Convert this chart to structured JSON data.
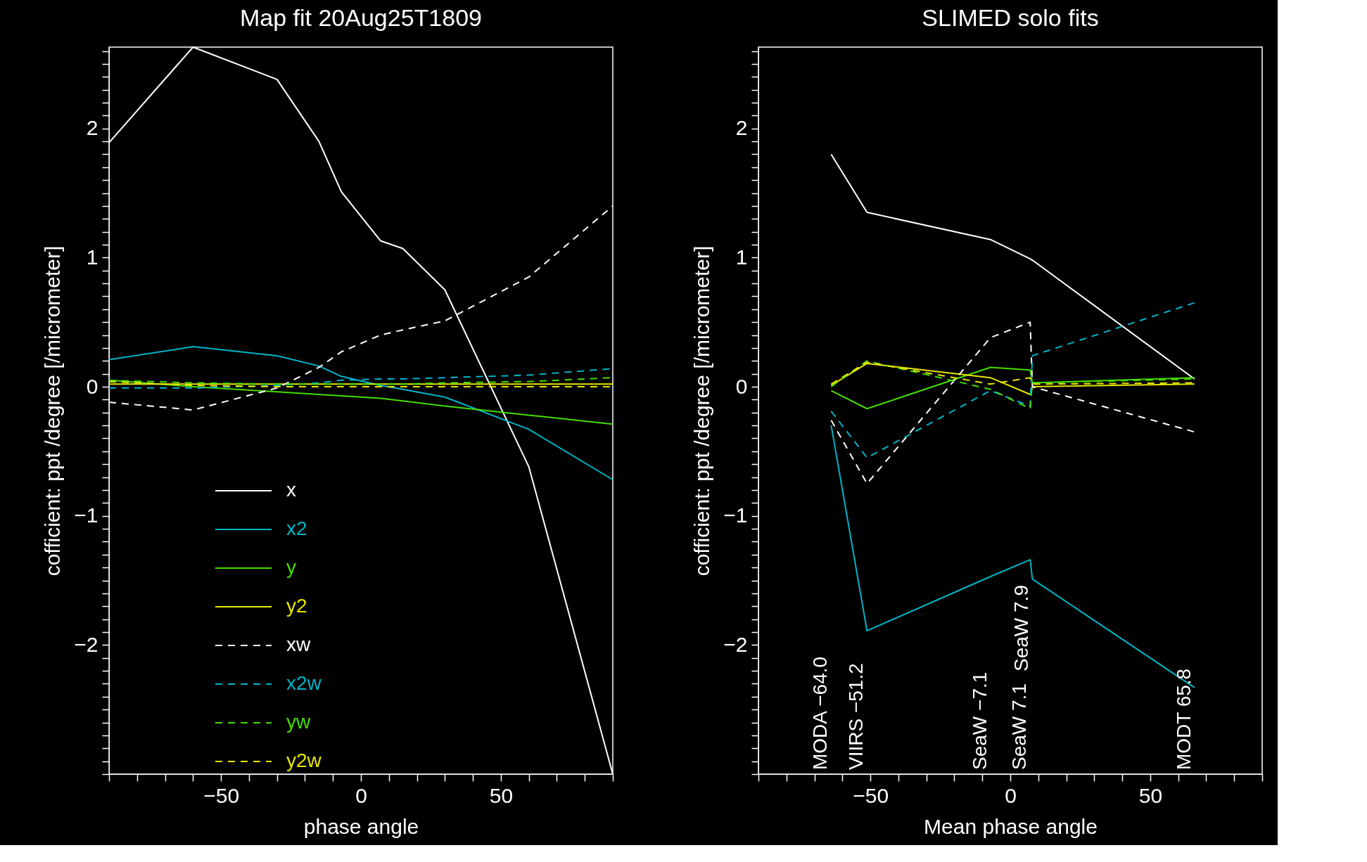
{
  "chart_data": [
    {
      "type": "line",
      "title": "Map fit 20Aug25T1809",
      "xlabel": "phase angle",
      "ylabel": "cofficient: ppt /degree [/micrometer]",
      "x": [
        -90,
        -60,
        -30,
        -15,
        -7,
        7,
        15,
        30,
        60,
        90
      ],
      "xlim": [
        -90,
        90
      ],
      "ylim": [
        -3.0,
        2.63
      ],
      "xticks": [
        {
          "value": -90,
          "label": null
        },
        {
          "value": -80,
          "label": null
        },
        {
          "value": -70,
          "label": null
        },
        {
          "value": -60,
          "label": null
        },
        -50,
        {
          "value": -40,
          "label": null
        },
        {
          "value": -30,
          "label": null
        },
        {
          "value": -20,
          "label": null
        },
        {
          "value": -10,
          "label": null
        },
        0,
        {
          "value": 10,
          "label": null
        },
        {
          "value": 20,
          "label": null
        },
        {
          "value": 30,
          "label": null
        },
        {
          "value": 40,
          "label": null
        },
        50,
        {
          "value": 60,
          "label": null
        },
        {
          "value": 70,
          "label": null
        },
        {
          "value": 80,
          "label": null
        },
        {
          "value": 90,
          "label": null
        }
      ],
      "yticks": [
        {
          "value": -3.0,
          "label": null
        },
        {
          "value": -2.9,
          "label": null
        },
        {
          "value": -2.8,
          "label": null
        },
        {
          "value": -2.7,
          "label": null
        },
        {
          "value": -2.6,
          "label": null
        },
        {
          "value": -2.5,
          "label": null
        },
        {
          "value": -2.4,
          "label": null
        },
        {
          "value": -2.3,
          "label": null
        },
        {
          "value": -2.2,
          "label": null
        },
        {
          "value": -2.1,
          "label": null
        },
        -2,
        {
          "value": -1.9,
          "label": null
        },
        {
          "value": -1.8,
          "label": null
        },
        {
          "value": -1.7,
          "label": null
        },
        {
          "value": -1.6,
          "label": null
        },
        {
          "value": -1.5,
          "label": null
        },
        {
          "value": -1.4,
          "label": null
        },
        {
          "value": -1.3,
          "label": null
        },
        {
          "value": -1.2,
          "label": null
        },
        {
          "value": -1.1,
          "label": null
        },
        -1,
        {
          "value": -0.9,
          "label": null
        },
        {
          "value": -0.8,
          "label": null
        },
        {
          "value": -0.7,
          "label": null
        },
        {
          "value": -0.6,
          "label": null
        },
        {
          "value": -0.5,
          "label": null
        },
        {
          "value": -0.4,
          "label": null
        },
        {
          "value": -0.3,
          "label": null
        },
        {
          "value": -0.2,
          "label": null
        },
        {
          "value": -0.1,
          "label": null
        },
        0,
        {
          "value": 0.1,
          "label": null
        },
        {
          "value": 0.2,
          "label": null
        },
        {
          "value": 0.3,
          "label": null
        },
        {
          "value": 0.4,
          "label": null
        },
        {
          "value": 0.5,
          "label": null
        },
        {
          "value": 0.6,
          "label": null
        },
        {
          "value": 0.7,
          "label": null
        },
        {
          "value": 0.8,
          "label": null
        },
        {
          "value": 0.9,
          "label": null
        },
        1,
        {
          "value": 1.1,
          "label": null
        },
        {
          "value": 1.2,
          "label": null
        },
        {
          "value": 1.3,
          "label": null
        },
        {
          "value": 1.4,
          "label": null
        },
        {
          "value": 1.5,
          "label": null
        },
        {
          "value": 1.6,
          "label": null
        },
        {
          "value": 1.7,
          "label": null
        },
        {
          "value": 1.8,
          "label": null
        },
        {
          "value": 1.9,
          "label": null
        },
        2,
        {
          "value": 2.1,
          "label": null
        },
        {
          "value": 2.2,
          "label": null
        },
        {
          "value": 2.3,
          "label": null
        },
        {
          "value": 2.4,
          "label": null
        },
        {
          "value": 2.5,
          "label": null
        },
        {
          "value": 2.6,
          "label": null
        }
      ],
      "grid": false,
      "legend": "bottom left",
      "series": [
        {
          "name": "x",
          "color": "#ffffff",
          "line_style": "solid",
          "values": [
            1.89,
            2.63,
            2.38,
            1.9,
            1.51,
            1.13,
            1.07,
            0.75,
            -0.62,
            -3.0
          ]
        },
        {
          "name": "x2",
          "color": "#00b4c8",
          "line_style": "solid",
          "values": [
            0.21,
            0.31,
            0.24,
            0.16,
            0.08,
            0.01,
            -0.02,
            -0.08,
            -0.33,
            -0.72
          ]
        },
        {
          "name": "y",
          "color": "#44dd00",
          "line_style": "solid",
          "values": [
            0.05,
            0.0,
            -0.04,
            -0.06,
            -0.07,
            -0.09,
            -0.11,
            -0.15,
            -0.22,
            -0.29
          ]
        },
        {
          "name": "y2",
          "color": "#e6e600",
          "line_style": "solid",
          "values": [
            0.02,
            0.02,
            0.02,
            0.02,
            0.02,
            0.02,
            0.02,
            0.02,
            0.02,
            0.02
          ]
        },
        {
          "name": "xw",
          "color": "#ffffff",
          "line_style": "dashed",
          "values": [
            -0.12,
            -0.18,
            -0.01,
            0.15,
            0.27,
            0.4,
            0.44,
            0.51,
            0.85,
            1.4
          ]
        },
        {
          "name": "x2w",
          "color": "#00b4c8",
          "line_style": "dashed",
          "values": [
            -0.01,
            -0.01,
            0.01,
            0.03,
            0.05,
            0.06,
            0.06,
            0.07,
            0.09,
            0.14
          ]
        },
        {
          "name": "yw",
          "color": "#44dd00",
          "line_style": "dashed",
          "values": [
            0.05,
            0.03,
            0.02,
            0.02,
            0.02,
            0.02,
            0.02,
            0.03,
            0.04,
            0.07
          ]
        },
        {
          "name": "y2w",
          "color": "#e6e600",
          "line_style": "dashed",
          "values": [
            0.04,
            0.01,
            0.0,
            0.0,
            0.0,
            0.0,
            0.0,
            0.0,
            0.0,
            0.0
          ]
        }
      ]
    },
    {
      "type": "line",
      "title": "SLIMED solo fits",
      "xlabel": "Mean phase angle",
      "ylabel": "cofficient: ppt /degree [/micrometer]",
      "x": [
        -64.0,
        -51.2,
        -7.1,
        7.1,
        7.9,
        65.8
      ],
      "xlim": [
        -90,
        90
      ],
      "ylim": [
        -3.0,
        2.63
      ],
      "xticks": [
        {
          "value": -90,
          "label": null
        },
        {
          "value": -80,
          "label": null
        },
        {
          "value": -70,
          "label": null
        },
        {
          "value": -60,
          "label": null
        },
        -50,
        {
          "value": -40,
          "label": null
        },
        {
          "value": -30,
          "label": null
        },
        {
          "value": -20,
          "label": null
        },
        {
          "value": -10,
          "label": null
        },
        0,
        {
          "value": 10,
          "label": null
        },
        {
          "value": 20,
          "label": null
        },
        {
          "value": 30,
          "label": null
        },
        {
          "value": 40,
          "label": null
        },
        50,
        {
          "value": 60,
          "label": null
        },
        {
          "value": 70,
          "label": null
        },
        {
          "value": 80,
          "label": null
        },
        {
          "value": 90,
          "label": null
        }
      ],
      "yticks": [
        {
          "value": -3.0,
          "label": null
        },
        {
          "value": -2.9,
          "label": null
        },
        {
          "value": -2.8,
          "label": null
        },
        {
          "value": -2.7,
          "label": null
        },
        {
          "value": -2.6,
          "label": null
        },
        {
          "value": -2.5,
          "label": null
        },
        {
          "value": -2.4,
          "label": null
        },
        {
          "value": -2.3,
          "label": null
        },
        {
          "value": -2.2,
          "label": null
        },
        {
          "value": -2.1,
          "label": null
        },
        -2,
        {
          "value": -1.9,
          "label": null
        },
        {
          "value": -1.8,
          "label": null
        },
        {
          "value": -1.7,
          "label": null
        },
        {
          "value": -1.6,
          "label": null
        },
        {
          "value": -1.5,
          "label": null
        },
        {
          "value": -1.4,
          "label": null
        },
        {
          "value": -1.3,
          "label": null
        },
        {
          "value": -1.2,
          "label": null
        },
        {
          "value": -1.1,
          "label": null
        },
        -1,
        {
          "value": -0.9,
          "label": null
        },
        {
          "value": -0.8,
          "label": null
        },
        {
          "value": -0.7,
          "label": null
        },
        {
          "value": -0.6,
          "label": null
        },
        {
          "value": -0.5,
          "label": null
        },
        {
          "value": -0.4,
          "label": null
        },
        {
          "value": -0.3,
          "label": null
        },
        {
          "value": -0.2,
          "label": null
        },
        {
          "value": -0.1,
          "label": null
        },
        0,
        {
          "value": 0.1,
          "label": null
        },
        {
          "value": 0.2,
          "label": null
        },
        {
          "value": 0.3,
          "label": null
        },
        {
          "value": 0.4,
          "label": null
        },
        {
          "value": 0.5,
          "label": null
        },
        {
          "value": 0.6,
          "label": null
        },
        {
          "value": 0.7,
          "label": null
        },
        {
          "value": 0.8,
          "label": null
        },
        {
          "value": 0.9,
          "label": null
        },
        1,
        {
          "value": 1.1,
          "label": null
        },
        {
          "value": 1.2,
          "label": null
        },
        {
          "value": 1.3,
          "label": null
        },
        {
          "value": 1.4,
          "label": null
        },
        {
          "value": 1.5,
          "label": null
        },
        {
          "value": 1.6,
          "label": null
        },
        {
          "value": 1.7,
          "label": null
        },
        {
          "value": 1.8,
          "label": null
        },
        {
          "value": 1.9,
          "label": null
        },
        2,
        {
          "value": 2.1,
          "label": null
        },
        {
          "value": 2.2,
          "label": null
        },
        {
          "value": 2.3,
          "label": null
        },
        {
          "value": 2.4,
          "label": null
        },
        {
          "value": 2.5,
          "label": null
        },
        {
          "value": 2.6,
          "label": null
        }
      ],
      "grid": false,
      "annotations": [
        "MODA −64.0",
        "VIIRS −51.2",
        "SeaW  −7.1",
        "SeaW  7.1",
        "SeaW  7.9",
        "MODT  65.8"
      ],
      "series": [
        {
          "color": "#ffffff",
          "line_style": "solid",
          "values": [
            1.8,
            1.35,
            1.14,
            0.99,
            0.98,
            0.06
          ]
        },
        {
          "color": "#00b4c8",
          "line_style": "solid",
          "values": [
            -0.3,
            -1.89,
            -1.47,
            -1.34,
            -1.49,
            -2.33
          ]
        },
        {
          "color": "#44dd00",
          "line_style": "solid",
          "values": [
            -0.03,
            -0.17,
            0.15,
            0.13,
            0.03,
            0.07
          ]
        },
        {
          "color": "#e6e600",
          "line_style": "solid",
          "values": [
            0.01,
            0.18,
            0.07,
            -0.06,
            0.0,
            0.02
          ]
        },
        {
          "color": "#ffffff",
          "line_style": "dashed",
          "values": [
            -0.26,
            -0.75,
            0.38,
            0.5,
            0.0,
            -0.35
          ]
        },
        {
          "color": "#00b4c8",
          "line_style": "dashed",
          "values": [
            -0.19,
            -0.55,
            -0.03,
            -0.15,
            0.24,
            0.65
          ]
        },
        {
          "color": "#44dd00",
          "line_style": "dashed",
          "values": [
            0.0,
            0.2,
            -0.02,
            -0.17,
            0.03,
            0.06
          ]
        },
        {
          "color": "#e6e600",
          "line_style": "dashed",
          "values": [
            0.02,
            0.19,
            0.02,
            0.07,
            0.02,
            0.03
          ]
        }
      ]
    }
  ]
}
